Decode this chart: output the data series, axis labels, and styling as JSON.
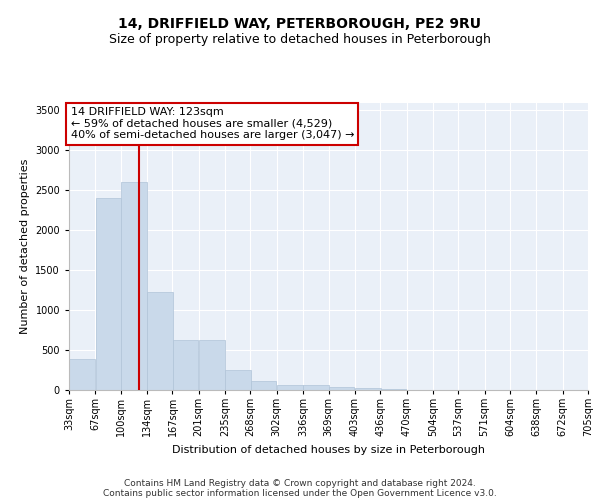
{
  "title": "14, DRIFFIELD WAY, PETERBOROUGH, PE2 9RU",
  "subtitle": "Size of property relative to detached houses in Peterborough",
  "xlabel": "Distribution of detached houses by size in Peterborough",
  "ylabel": "Number of detached properties",
  "bar_color": "#c9d9ea",
  "bar_edgecolor": "#b0c4d8",
  "background_color": "#eaf0f8",
  "grid_color": "#ffffff",
  "fig_facecolor": "#ffffff",
  "vline_x": 123,
  "vline_color": "#cc0000",
  "annotation_text": "14 DRIFFIELD WAY: 123sqm\n← 59% of detached houses are smaller (4,529)\n40% of semi-detached houses are larger (3,047) →",
  "annotation_box_facecolor": "#ffffff",
  "annotation_box_edgecolor": "#cc0000",
  "bin_edges": [
    33,
    67,
    100,
    134,
    167,
    201,
    235,
    268,
    302,
    336,
    369,
    403,
    436,
    470,
    504,
    537,
    571,
    604,
    638,
    672,
    705
  ],
  "bar_heights": [
    390,
    2400,
    2600,
    1230,
    630,
    630,
    250,
    110,
    65,
    65,
    40,
    20,
    8,
    5,
    3,
    2,
    1,
    1,
    1,
    1
  ],
  "ylim": [
    0,
    3600
  ],
  "yticks": [
    0,
    500,
    1000,
    1500,
    2000,
    2500,
    3000,
    3500
  ],
  "tick_labels": [
    "33sqm",
    "67sqm",
    "100sqm",
    "134sqm",
    "167sqm",
    "201sqm",
    "235sqm",
    "268sqm",
    "302sqm",
    "336sqm",
    "369sqm",
    "403sqm",
    "436sqm",
    "470sqm",
    "504sqm",
    "537sqm",
    "571sqm",
    "604sqm",
    "638sqm",
    "672sqm",
    "705sqm"
  ],
  "footer_line1": "Contains HM Land Registry data © Crown copyright and database right 2024.",
  "footer_line2": "Contains public sector information licensed under the Open Government Licence v3.0.",
  "title_fontsize": 10,
  "subtitle_fontsize": 9,
  "axis_label_fontsize": 8,
  "tick_fontsize": 7,
  "annotation_fontsize": 8,
  "footer_fontsize": 6.5
}
